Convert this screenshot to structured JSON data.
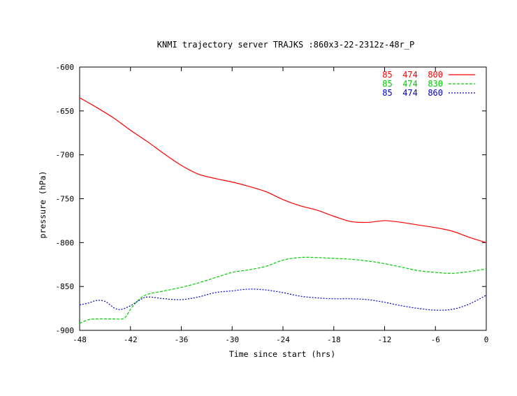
{
  "chart_data": {
    "type": "line",
    "title": "KNMI trajectory server TRAJKS :860x3-22-2312z-48r_P",
    "xlabel": "Time since start (hrs)",
    "ylabel": "pressure (hPa)",
    "xlim": [
      -48,
      0
    ],
    "ylim": [
      -900,
      -600
    ],
    "x_ticks": [
      -48,
      -42,
      -36,
      -30,
      -24,
      -18,
      -12,
      -6,
      0
    ],
    "y_ticks": [
      -600,
      -650,
      -700,
      -750,
      -800,
      -850,
      -900
    ],
    "legend_placement": "top-right",
    "grid": false,
    "series": [
      {
        "name": "85  474  800",
        "color": "#ff0000",
        "dash": "solid",
        "x": [
          -48,
          -46,
          -44,
          -42,
          -40,
          -38,
          -36,
          -34,
          -32,
          -30,
          -28,
          -26,
          -24,
          -22,
          -20,
          -18,
          -16,
          -14,
          -12,
          -10,
          -8,
          -6,
          -4,
          -2,
          0
        ],
        "y": [
          -635,
          -646,
          -658,
          -672,
          -685,
          -699,
          -712,
          -722,
          -727,
          -731,
          -736,
          -742,
          -751,
          -758,
          -763,
          -770,
          -776,
          -777,
          -775,
          -777,
          -780,
          -783,
          -787,
          -794,
          -800
        ]
      },
      {
        "name": "85  474  830",
        "color": "#00cc00",
        "dash": "dash",
        "x": [
          -48,
          -47,
          -46,
          -44,
          -43,
          -42.5,
          -42,
          -41,
          -40,
          -38,
          -36,
          -34,
          -32,
          -30,
          -28,
          -26,
          -24,
          -22,
          -20,
          -18,
          -16,
          -14,
          -12,
          -10,
          -8,
          -6,
          -4,
          -2,
          0
        ],
        "y": [
          -892,
          -888,
          -887,
          -887,
          -887,
          -884,
          -876,
          -865,
          -859,
          -855,
          -851,
          -846,
          -840,
          -834,
          -831,
          -827,
          -820,
          -817,
          -817,
          -818,
          -819,
          -821,
          -824,
          -828,
          -832,
          -834,
          -835,
          -833,
          -830
        ]
      },
      {
        "name": "85  474  860",
        "color": "#0000cc",
        "dash": "dot",
        "x": [
          -48,
          -47,
          -46,
          -45,
          -44,
          -43.5,
          -43,
          -42,
          -41,
          -40,
          -38,
          -36,
          -34,
          -32,
          -30,
          -28,
          -26,
          -24,
          -22,
          -20,
          -18,
          -16,
          -14,
          -12,
          -10,
          -8,
          -6,
          -4,
          -2,
          0
        ],
        "y": [
          -871,
          -869,
          -866,
          -867,
          -874,
          -876,
          -876,
          -872,
          -866,
          -862,
          -864,
          -865,
          -862,
          -857,
          -855,
          -853,
          -854,
          -857,
          -861,
          -863,
          -864,
          -864,
          -865,
          -868,
          -872,
          -875,
          -877,
          -876,
          -870,
          -860
        ]
      }
    ]
  }
}
